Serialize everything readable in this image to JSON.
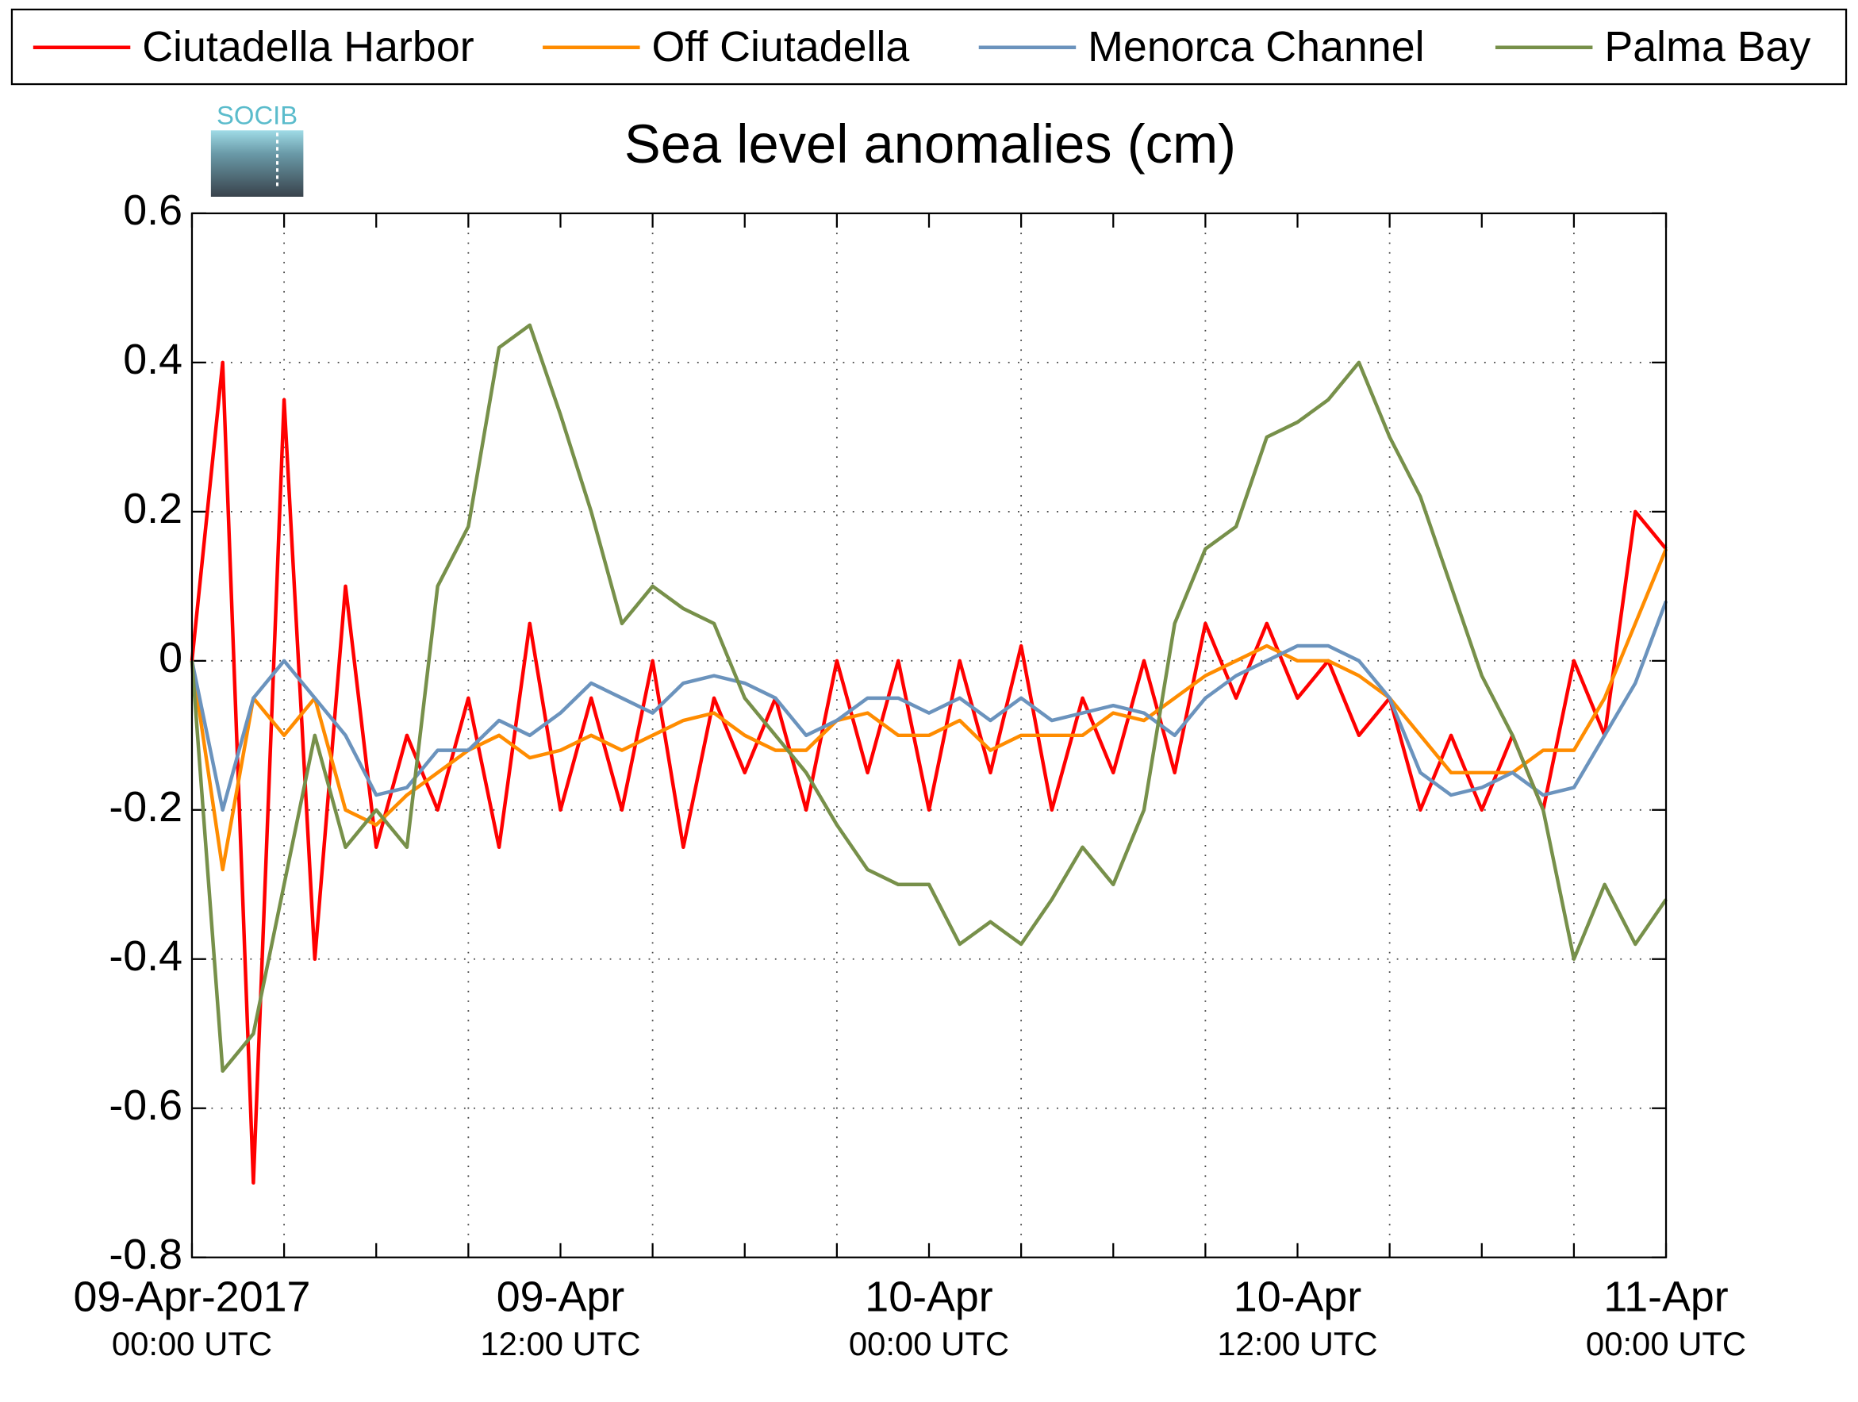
{
  "chart_data": {
    "type": "line",
    "title": "Sea level anomalies (cm)",
    "logo_text": "SOCIB",
    "legend": "top",
    "grid": true,
    "xlim": [
      "2017-04-09T00:00",
      "2017-04-11T00:00"
    ],
    "xticks": [
      {
        "value": "2017-04-09T00:00",
        "label": "09-Apr-2017",
        "sublabel": "00:00 UTC"
      },
      {
        "value": "2017-04-09T12:00",
        "label": "09-Apr",
        "sublabel": "12:00 UTC"
      },
      {
        "value": "2017-04-10T00:00",
        "label": "10-Apr",
        "sublabel": "00:00 UTC"
      },
      {
        "value": "2017-04-10T12:00",
        "label": "10-Apr",
        "sublabel": "12:00 UTC"
      },
      {
        "value": "2017-04-11T00:00",
        "label": "11-Apr",
        "sublabel": "00:00 UTC"
      }
    ],
    "minor_xticks": [
      "2017-04-09T03:00",
      "2017-04-09T06:00",
      "2017-04-09T09:00",
      "2017-04-09T15:00",
      "2017-04-09T18:00",
      "2017-04-09T21:00",
      "2017-04-10T03:00",
      "2017-04-10T06:00",
      "2017-04-10T09:00",
      "2017-04-10T15:00",
      "2017-04-10T18:00",
      "2017-04-10T21:00"
    ],
    "xgrid": [
      "2017-04-09T03:00",
      "2017-04-09T09:00",
      "2017-04-09T15:00",
      "2017-04-09T21:00",
      "2017-04-10T03:00",
      "2017-04-10T09:00",
      "2017-04-10T15:00",
      "2017-04-10T21:00"
    ],
    "ylim": [
      -0.8,
      0.6
    ],
    "yticks": [
      -0.8,
      -0.6,
      -0.4,
      -0.2,
      0,
      0.2,
      0.4,
      0.6
    ],
    "x": [
      "2017-04-09T00:00",
      "2017-04-09T01:00",
      "2017-04-09T02:00",
      "2017-04-09T03:00",
      "2017-04-09T04:00",
      "2017-04-09T05:00",
      "2017-04-09T06:00",
      "2017-04-09T07:00",
      "2017-04-09T08:00",
      "2017-04-09T09:00",
      "2017-04-09T10:00",
      "2017-04-09T11:00",
      "2017-04-09T12:00",
      "2017-04-09T13:00",
      "2017-04-09T14:00",
      "2017-04-09T15:00",
      "2017-04-09T16:00",
      "2017-04-09T17:00",
      "2017-04-09T18:00",
      "2017-04-09T19:00",
      "2017-04-09T20:00",
      "2017-04-09T21:00",
      "2017-04-09T22:00",
      "2017-04-09T23:00",
      "2017-04-10T00:00",
      "2017-04-10T01:00",
      "2017-04-10T02:00",
      "2017-04-10T03:00",
      "2017-04-10T04:00",
      "2017-04-10T05:00",
      "2017-04-10T06:00",
      "2017-04-10T07:00",
      "2017-04-10T08:00",
      "2017-04-10T09:00",
      "2017-04-10T10:00",
      "2017-04-10T11:00",
      "2017-04-10T12:00",
      "2017-04-10T13:00",
      "2017-04-10T14:00",
      "2017-04-10T15:00",
      "2017-04-10T16:00",
      "2017-04-10T17:00",
      "2017-04-10T18:00",
      "2017-04-10T19:00",
      "2017-04-10T20:00",
      "2017-04-10T21:00",
      "2017-04-10T22:00",
      "2017-04-10T23:00",
      "2017-04-11T00:00"
    ],
    "series": [
      {
        "name": "Ciutadella Harbor",
        "color": "#ff0000",
        "values": [
          0,
          0.4,
          -0.7,
          0.35,
          -0.4,
          0.1,
          -0.25,
          -0.1,
          -0.2,
          -0.05,
          -0.25,
          0.05,
          -0.2,
          -0.05,
          -0.2,
          0,
          -0.25,
          -0.05,
          -0.15,
          -0.05,
          -0.2,
          0,
          -0.15,
          0,
          -0.2,
          0,
          -0.15,
          0.02,
          -0.2,
          -0.05,
          -0.15,
          0,
          -0.15,
          0.05,
          -0.05,
          0.05,
          -0.05,
          0,
          -0.1,
          -0.05,
          -0.2,
          -0.1,
          -0.2,
          -0.1,
          -0.2,
          0,
          -0.1,
          0.2,
          0.15
        ]
      },
      {
        "name": "Off Ciutadella",
        "color": "#ff8c00",
        "values": [
          0,
          -0.28,
          -0.05,
          -0.1,
          -0.05,
          -0.2,
          -0.22,
          -0.18,
          -0.15,
          -0.12,
          -0.1,
          -0.13,
          -0.12,
          -0.1,
          -0.12,
          -0.1,
          -0.08,
          -0.07,
          -0.1,
          -0.12,
          -0.12,
          -0.08,
          -0.07,
          -0.1,
          -0.1,
          -0.08,
          -0.12,
          -0.1,
          -0.1,
          -0.1,
          -0.07,
          -0.08,
          -0.05,
          -0.02,
          0,
          0.02,
          0,
          0,
          -0.02,
          -0.05,
          -0.1,
          -0.15,
          -0.15,
          -0.15,
          -0.12,
          -0.12,
          -0.05,
          0.05,
          0.15
        ]
      },
      {
        "name": "Menorca Channel",
        "color": "#6b93bd",
        "values": [
          0,
          -0.2,
          -0.05,
          0,
          -0.05,
          -0.1,
          -0.18,
          -0.17,
          -0.12,
          -0.12,
          -0.08,
          -0.1,
          -0.07,
          -0.03,
          -0.05,
          -0.07,
          -0.03,
          -0.02,
          -0.03,
          -0.05,
          -0.1,
          -0.08,
          -0.05,
          -0.05,
          -0.07,
          -0.05,
          -0.08,
          -0.05,
          -0.08,
          -0.07,
          -0.06,
          -0.07,
          -0.1,
          -0.05,
          -0.02,
          0,
          0.02,
          0.02,
          0,
          -0.05,
          -0.15,
          -0.18,
          -0.17,
          -0.15,
          -0.18,
          -0.17,
          -0.1,
          -0.03,
          0.08
        ]
      },
      {
        "name": "Palma Bay",
        "color": "#77904a",
        "values": [
          0,
          -0.55,
          -0.5,
          -0.3,
          -0.1,
          -0.25,
          -0.2,
          -0.25,
          0.1,
          0.18,
          0.42,
          0.45,
          0.33,
          0.2,
          0.05,
          0.1,
          0.07,
          0.05,
          -0.05,
          -0.1,
          -0.15,
          -0.22,
          -0.28,
          -0.3,
          -0.3,
          -0.38,
          -0.35,
          -0.38,
          -0.32,
          -0.25,
          -0.3,
          -0.2,
          0.05,
          0.15,
          0.18,
          0.3,
          0.32,
          0.35,
          0.4,
          0.3,
          0.22,
          0.1,
          -0.02,
          -0.1,
          -0.2,
          -0.4,
          -0.3,
          -0.38,
          -0.32
        ]
      }
    ]
  }
}
